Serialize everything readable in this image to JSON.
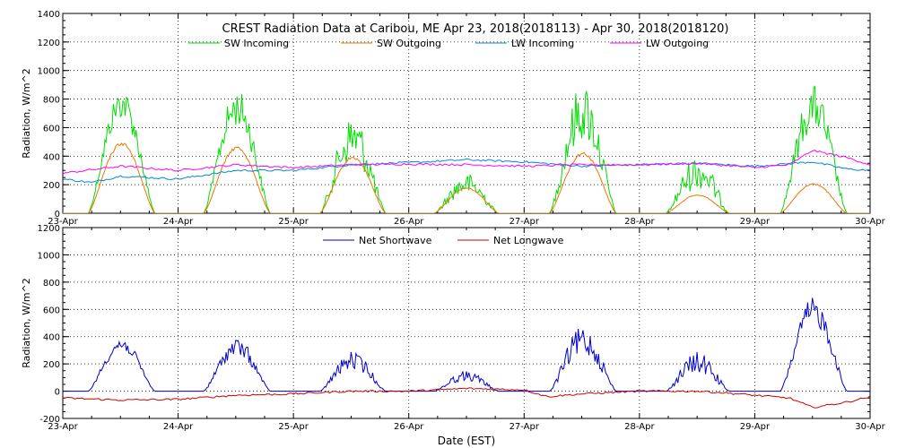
{
  "title": "CREST Radiation Data at Caribou, ME   Apr 23, 2018(2018113) - Apr 30, 2018(2018120)",
  "xlabel": "Date (EST)",
  "x_ticks": [
    "23-Apr",
    "24-Apr",
    "25-Apr",
    "26-Apr",
    "27-Apr",
    "28-Apr",
    "29-Apr",
    "30-Apr"
  ],
  "chart_data": [
    {
      "type": "line",
      "ylabel": "Radiation, W/m^2",
      "xlim": [
        0,
        7
      ],
      "ylim": [
        0,
        1400
      ],
      "y_ticks": [
        0,
        200,
        400,
        600,
        800,
        1000,
        1200,
        1400
      ],
      "grid": true,
      "legend": "top",
      "series": [
        {
          "name": "SW Incoming",
          "color": "#00dd00",
          "days": [
            {
              "rise": 0.22,
              "set": 0.8,
              "peak": 880,
              "noise": 0.25
            },
            {
              "rise": 0.22,
              "set": 0.8,
              "peak": 870,
              "noise": 0.3
            },
            {
              "rise": 0.23,
              "set": 0.8,
              "peak": 700,
              "noise": 0.5
            },
            {
              "rise": 0.22,
              "set": 0.78,
              "peak": 280,
              "noise": 0.55
            },
            {
              "rise": 0.22,
              "set": 0.8,
              "peak": 920,
              "noise": 0.45
            },
            {
              "rise": 0.23,
              "set": 0.78,
              "peak": 420,
              "noise": 0.6
            },
            {
              "rise": 0.22,
              "set": 0.8,
              "peak": 900,
              "noise": 0.35
            }
          ]
        },
        {
          "name": "SW Outgoing",
          "color": "#ee7700",
          "days": [
            {
              "rise": 0.22,
              "set": 0.8,
              "peak": 500
            },
            {
              "rise": 0.22,
              "set": 0.8,
              "peak": 470
            },
            {
              "rise": 0.23,
              "set": 0.8,
              "peak": 400
            },
            {
              "rise": 0.22,
              "set": 0.78,
              "peak": 180
            },
            {
              "rise": 0.22,
              "set": 0.8,
              "peak": 430
            },
            {
              "rise": 0.23,
              "set": 0.78,
              "peak": 130
            },
            {
              "rise": 0.22,
              "set": 0.8,
              "peak": 210
            }
          ]
        },
        {
          "name": "LW Incoming",
          "color": "#0088dd",
          "points": [
            [
              0,
              240
            ],
            [
              0.25,
              215
            ],
            [
              0.5,
              260
            ],
            [
              1.0,
              240
            ],
            [
              1.5,
              300
            ],
            [
              2.0,
              300
            ],
            [
              2.5,
              340
            ],
            [
              3.0,
              355
            ],
            [
              3.5,
              375
            ],
            [
              4.0,
              360
            ],
            [
              4.5,
              330
            ],
            [
              5.0,
              340
            ],
            [
              5.5,
              350
            ],
            [
              6.0,
              330
            ],
            [
              6.5,
              360
            ],
            [
              6.8,
              310
            ],
            [
              7.0,
              300
            ]
          ]
        },
        {
          "name": "LW Outgoing",
          "color": "#ff00ff",
          "points": [
            [
              0,
              280
            ],
            [
              0.5,
              330
            ],
            [
              1.0,
              300
            ],
            [
              1.5,
              340
            ],
            [
              2.0,
              320
            ],
            [
              2.5,
              340
            ],
            [
              3.0,
              345
            ],
            [
              3.5,
              340
            ],
            [
              4.0,
              330
            ],
            [
              4.5,
              340
            ],
            [
              5.0,
              340
            ],
            [
              5.5,
              350
            ],
            [
              6.0,
              320
            ],
            [
              6.3,
              340
            ],
            [
              6.5,
              440
            ],
            [
              6.8,
              390
            ],
            [
              7.0,
              340
            ]
          ]
        }
      ]
    },
    {
      "type": "line",
      "ylabel": "Radiation, W/m^2",
      "xlim": [
        0,
        7
      ],
      "ylim": [
        -200,
        1200
      ],
      "y_ticks": [
        -200,
        0,
        200,
        400,
        600,
        800,
        1000,
        1200
      ],
      "grid": true,
      "legend": "top",
      "series": [
        {
          "name": "Net Shortwave",
          "color": "#0000cc",
          "days": [
            {
              "rise": 0.22,
              "set": 0.8,
              "peak": 390,
              "noise": 0.25
            },
            {
              "rise": 0.22,
              "set": 0.8,
              "peak": 390,
              "noise": 0.35
            },
            {
              "rise": 0.23,
              "set": 0.8,
              "peak": 290,
              "noise": 0.45
            },
            {
              "rise": 0.22,
              "set": 0.78,
              "peak": 150,
              "noise": 0.5
            },
            {
              "rise": 0.22,
              "set": 0.8,
              "peak": 480,
              "noise": 0.45
            },
            {
              "rise": 0.23,
              "set": 0.78,
              "peak": 290,
              "noise": 0.55
            },
            {
              "rise": 0.22,
              "set": 0.8,
              "peak": 690,
              "noise": 0.3
            }
          ]
        },
        {
          "name": "Net Longwave",
          "color": "#cc0000",
          "points": [
            [
              0,
              -50
            ],
            [
              0.5,
              -65
            ],
            [
              1.0,
              -60
            ],
            [
              1.5,
              -30
            ],
            [
              2.0,
              -20
            ],
            [
              2.5,
              0
            ],
            [
              3.0,
              0
            ],
            [
              3.5,
              20
            ],
            [
              4.0,
              10
            ],
            [
              4.2,
              -40
            ],
            [
              4.5,
              -20
            ],
            [
              5.0,
              0
            ],
            [
              5.5,
              0
            ],
            [
              5.7,
              -10
            ],
            [
              6.0,
              -30
            ],
            [
              6.3,
              -50
            ],
            [
              6.5,
              -120
            ],
            [
              6.8,
              -80
            ],
            [
              7.0,
              -40
            ]
          ]
        }
      ]
    }
  ]
}
